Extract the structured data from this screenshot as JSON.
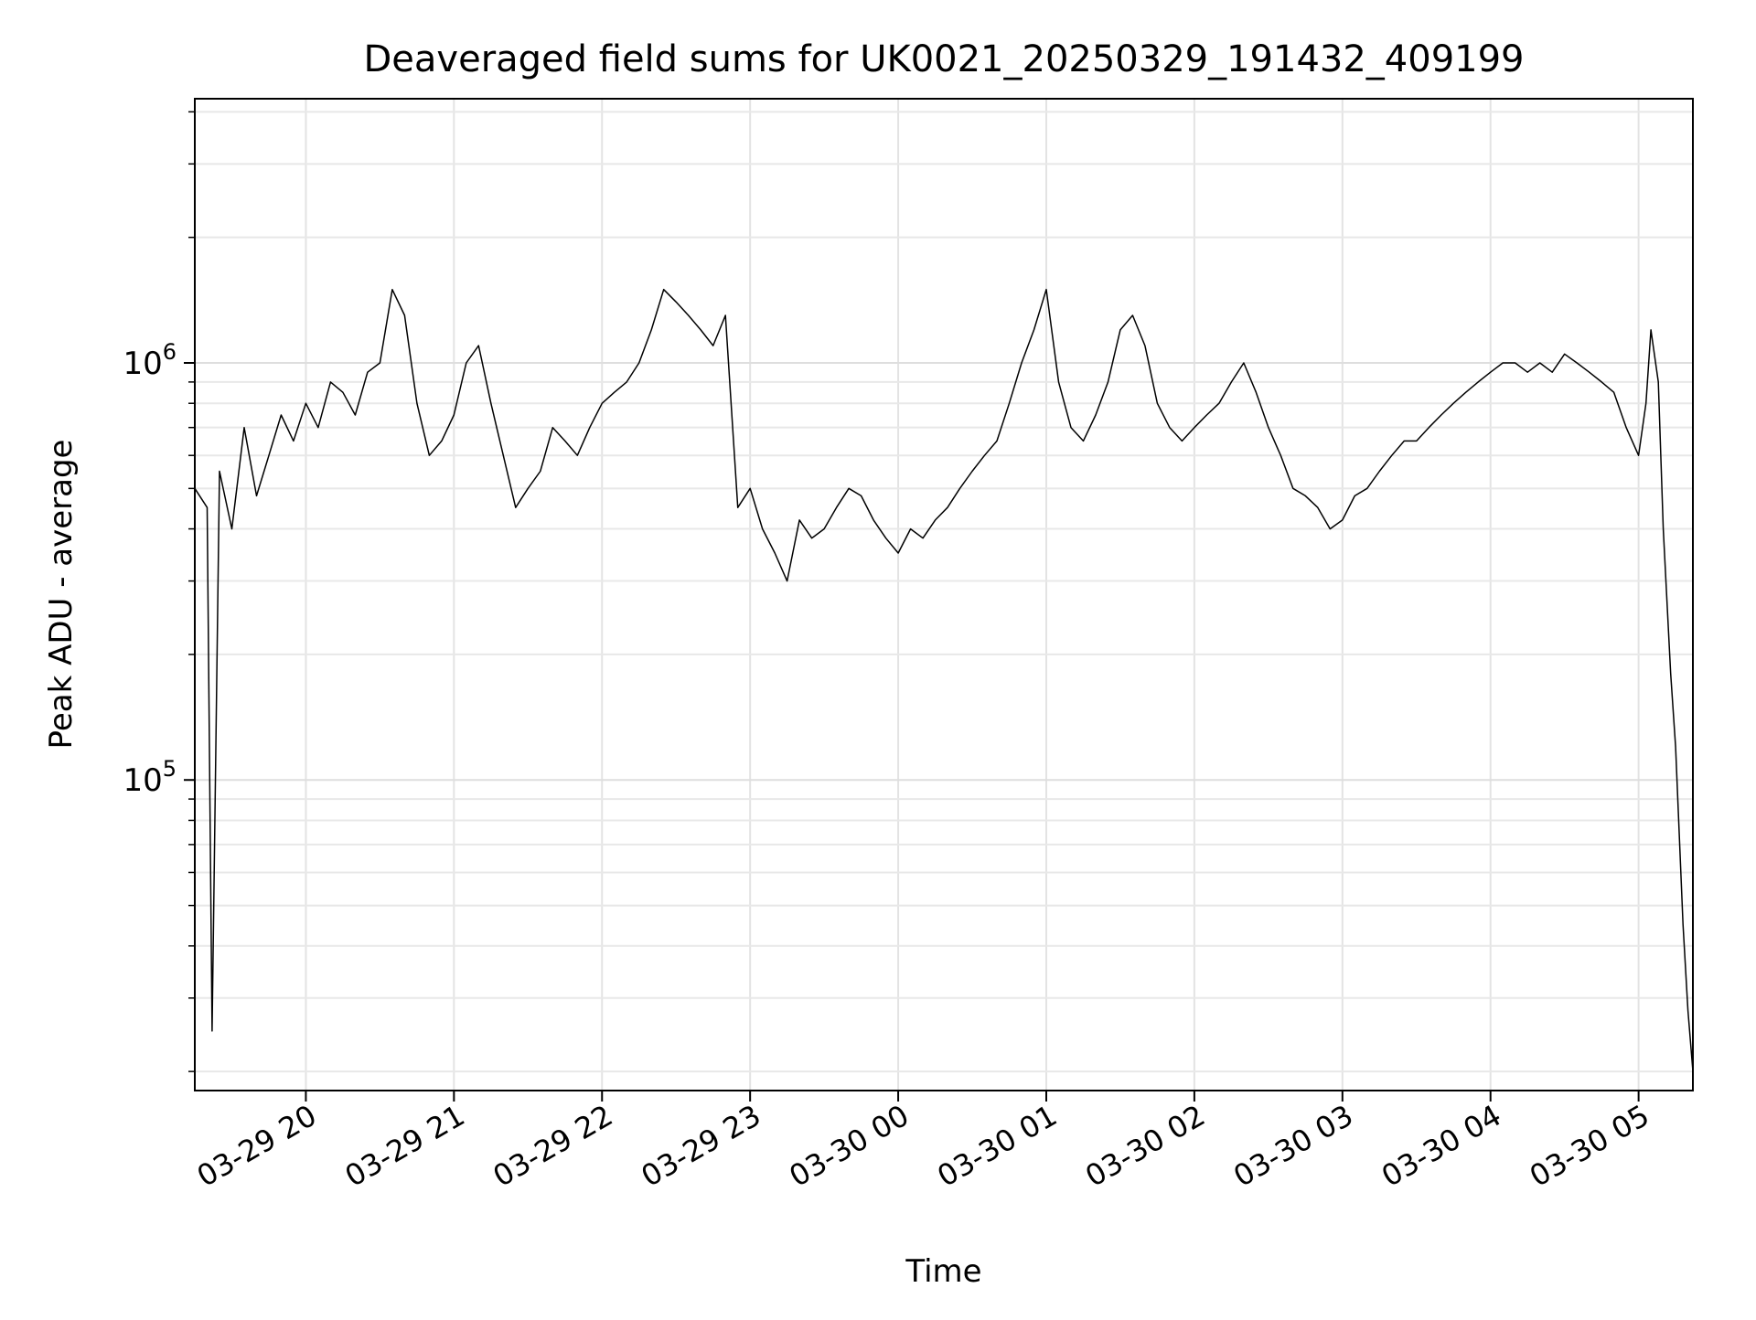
{
  "chart_data": {
    "type": "line",
    "title": "Deaveraged field sums for UK0021_20250329_191432_409199",
    "xlabel": "Time",
    "ylabel": "Peak ADU - average",
    "yscale": "log",
    "grid": true,
    "legend": "none",
    "xlim": [
      "2025-03-29 19:15",
      "2025-03-30 05:22"
    ],
    "ylim": [
      18000,
      4300000
    ],
    "x_ticks": [
      {
        "label": "03-29 20",
        "value": "2025-03-29 20:00"
      },
      {
        "label": "03-29 21",
        "value": "2025-03-29 21:00"
      },
      {
        "label": "03-29 22",
        "value": "2025-03-29 22:00"
      },
      {
        "label": "03-29 23",
        "value": "2025-03-29 23:00"
      },
      {
        "label": "03-30 00",
        "value": "2025-03-30 00:00"
      },
      {
        "label": "03-30 01",
        "value": "2025-03-30 01:00"
      },
      {
        "label": "03-30 02",
        "value": "2025-03-30 02:00"
      },
      {
        "label": "03-30 03",
        "value": "2025-03-30 03:00"
      },
      {
        "label": "03-30 04",
        "value": "2025-03-30 04:00"
      },
      {
        "label": "03-30 05",
        "value": "2025-03-30 05:00"
      }
    ],
    "y_ticks": [
      {
        "base": "10",
        "exp": "5",
        "value": 100000
      },
      {
        "base": "10",
        "exp": "6",
        "value": 1000000
      }
    ],
    "series": [
      {
        "color": "#000000",
        "x": [
          "2025-03-29 19:15",
          "2025-03-29 19:20",
          "2025-03-29 19:22",
          "2025-03-29 19:25",
          "2025-03-29 19:30",
          "2025-03-29 19:35",
          "2025-03-29 19:40",
          "2025-03-29 19:45",
          "2025-03-29 19:50",
          "2025-03-29 19:55",
          "2025-03-29 20:00",
          "2025-03-29 20:05",
          "2025-03-29 20:10",
          "2025-03-29 20:15",
          "2025-03-29 20:20",
          "2025-03-29 20:25",
          "2025-03-29 20:30",
          "2025-03-29 20:35",
          "2025-03-29 20:40",
          "2025-03-29 20:45",
          "2025-03-29 20:50",
          "2025-03-29 20:55",
          "2025-03-29 21:00",
          "2025-03-29 21:05",
          "2025-03-29 21:10",
          "2025-03-29 21:15",
          "2025-03-29 21:20",
          "2025-03-29 21:25",
          "2025-03-29 21:30",
          "2025-03-29 21:35",
          "2025-03-29 21:40",
          "2025-03-29 21:45",
          "2025-03-29 21:50",
          "2025-03-29 21:55",
          "2025-03-29 22:00",
          "2025-03-29 22:05",
          "2025-03-29 22:10",
          "2025-03-29 22:15",
          "2025-03-29 22:20",
          "2025-03-29 22:25",
          "2025-03-29 22:30",
          "2025-03-29 22:35",
          "2025-03-29 22:40",
          "2025-03-29 22:45",
          "2025-03-29 22:50",
          "2025-03-29 22:55",
          "2025-03-29 23:00",
          "2025-03-29 23:05",
          "2025-03-29 23:10",
          "2025-03-29 23:15",
          "2025-03-29 23:20",
          "2025-03-29 23:25",
          "2025-03-29 23:30",
          "2025-03-29 23:35",
          "2025-03-29 23:40",
          "2025-03-29 23:45",
          "2025-03-29 23:50",
          "2025-03-29 23:55",
          "2025-03-30 00:00",
          "2025-03-30 00:05",
          "2025-03-30 00:10",
          "2025-03-30 00:15",
          "2025-03-30 00:20",
          "2025-03-30 00:25",
          "2025-03-30 00:30",
          "2025-03-30 00:35",
          "2025-03-30 00:40",
          "2025-03-30 00:45",
          "2025-03-30 00:50",
          "2025-03-30 00:55",
          "2025-03-30 01:00",
          "2025-03-30 01:05",
          "2025-03-30 01:10",
          "2025-03-30 01:15",
          "2025-03-30 01:20",
          "2025-03-30 01:25",
          "2025-03-30 01:30",
          "2025-03-30 01:35",
          "2025-03-30 01:40",
          "2025-03-30 01:45",
          "2025-03-30 01:50",
          "2025-03-30 01:55",
          "2025-03-30 02:00",
          "2025-03-30 02:05",
          "2025-03-30 02:10",
          "2025-03-30 02:15",
          "2025-03-30 02:20",
          "2025-03-30 02:25",
          "2025-03-30 02:30",
          "2025-03-30 02:35",
          "2025-03-30 02:40",
          "2025-03-30 02:45",
          "2025-03-30 02:50",
          "2025-03-30 02:55",
          "2025-03-30 03:00",
          "2025-03-30 03:05",
          "2025-03-30 03:10",
          "2025-03-30 03:15",
          "2025-03-30 03:20",
          "2025-03-30 03:25",
          "2025-03-30 03:30",
          "2025-03-30 03:35",
          "2025-03-30 03:40",
          "2025-03-30 03:45",
          "2025-03-30 03:50",
          "2025-03-30 03:55",
          "2025-03-30 04:00",
          "2025-03-30 04:05",
          "2025-03-30 04:10",
          "2025-03-30 04:15",
          "2025-03-30 04:20",
          "2025-03-30 04:25",
          "2025-03-30 04:30",
          "2025-03-30 04:35",
          "2025-03-30 04:40",
          "2025-03-30 04:45",
          "2025-03-30 04:50",
          "2025-03-30 04:55",
          "2025-03-30 05:00",
          "2025-03-30 05:03",
          "2025-03-30 05:05",
          "2025-03-30 05:08",
          "2025-03-30 05:10",
          "2025-03-30 05:13",
          "2025-03-30 05:15",
          "2025-03-30 05:18",
          "2025-03-30 05:20",
          "2025-03-30 05:22"
        ],
        "y": [
          500000,
          450000,
          25000,
          550000,
          400000,
          700000,
          480000,
          600000,
          750000,
          650000,
          800000,
          700000,
          900000,
          850000,
          750000,
          950000,
          1000000,
          1500000,
          1300000,
          800000,
          600000,
          650000,
          750000,
          1000000,
          1100000,
          800000,
          600000,
          450000,
          500000,
          550000,
          700000,
          650000,
          600000,
          700000,
          800000,
          850000,
          900000,
          1000000,
          1200000,
          1500000,
          1400000,
          1300000,
          1200000,
          1100000,
          1300000,
          450000,
          500000,
          400000,
          350000,
          300000,
          420000,
          380000,
          400000,
          450000,
          500000,
          480000,
          420000,
          380000,
          350000,
          400000,
          380000,
          420000,
          450000,
          500000,
          550000,
          600000,
          650000,
          800000,
          1000000,
          1200000,
          1500000,
          900000,
          700000,
          650000,
          750000,
          900000,
          1200000,
          1300000,
          1100000,
          800000,
          700000,
          650000,
          700000,
          750000,
          800000,
          900000,
          1000000,
          850000,
          700000,
          600000,
          500000,
          480000,
          450000,
          400000,
          420000,
          480000,
          500000,
          550000,
          600000,
          650000,
          650000,
          700000,
          750000,
          800000,
          850000,
          900000,
          950000,
          1000000,
          1000000,
          950000,
          1000000,
          950000,
          1050000,
          1000000,
          950000,
          900000,
          850000,
          700000,
          600000,
          800000,
          1200000,
          900000,
          400000,
          180000,
          120000,
          45000,
          28000,
          20000
        ]
      }
    ]
  }
}
